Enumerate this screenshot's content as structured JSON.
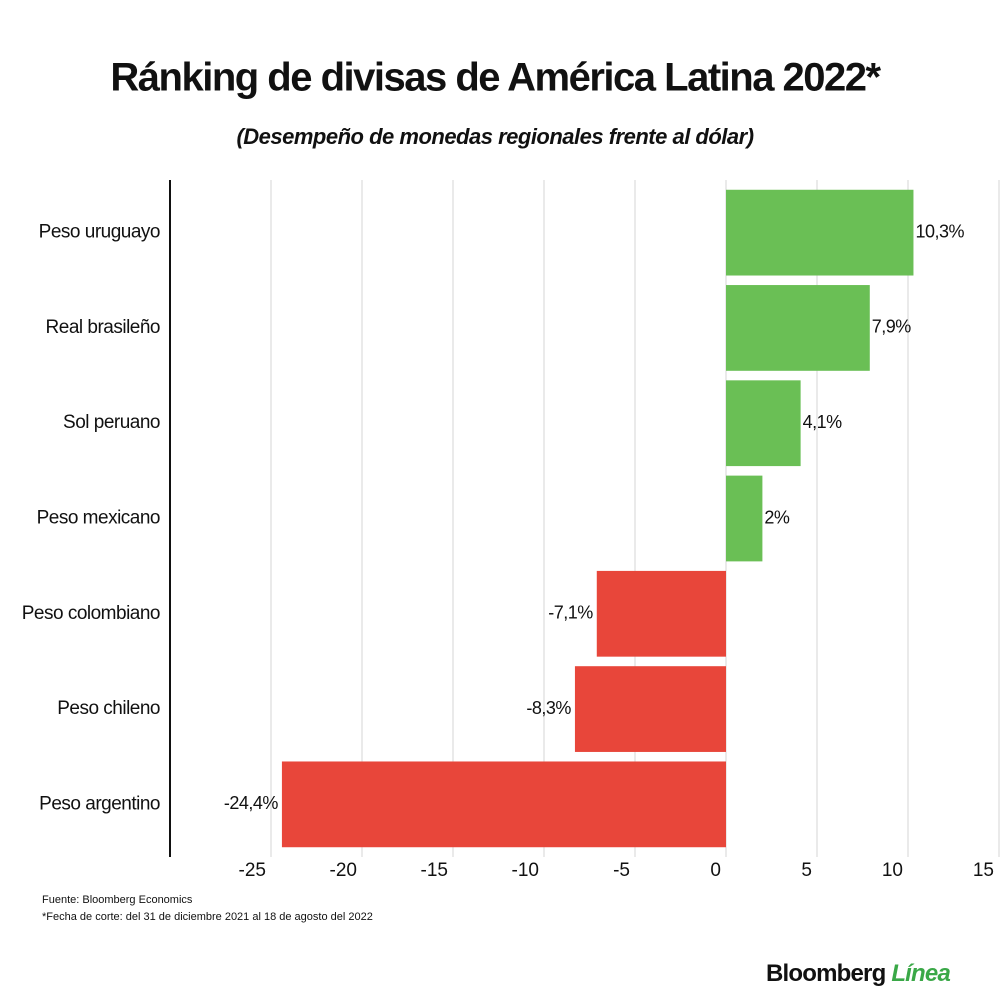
{
  "chart_data": {
    "type": "hbar",
    "title": "Ránking de divisas de América Latina 2022*",
    "subtitle": "(Desempeño de monedas regionales frente al dólar)",
    "categories": [
      "Peso uruguayo",
      "Real brasileño",
      "Sol peruano",
      "Peso mexicano",
      "Peso colombiano",
      "Peso chileno",
      "Peso argentino"
    ],
    "values": [
      10.3,
      7.9,
      4.1,
      2,
      -7.1,
      -8.3,
      -24.4
    ],
    "value_labels": [
      "10,3%",
      "7,9%",
      "4,1%",
      "2%",
      "-7,1%",
      "-8,3%",
      "-24,4%"
    ],
    "colors": [
      "#6abf55",
      "#6abf55",
      "#6abf55",
      "#6abf55",
      "#e8463a",
      "#e8463a",
      "#e8463a"
    ],
    "xlim": [
      -30,
      15
    ],
    "xticks": [
      -25,
      -20,
      -15,
      -10,
      -5,
      0,
      5,
      10,
      15
    ],
    "grid": true,
    "source": "Fuente: Bloomberg Economics",
    "footnote": "*Fecha de corte: del 31 de diciembre 2021 al 18 de agosto del 2022"
  },
  "brand": {
    "name": "Bloomberg",
    "suffix": "Línea"
  }
}
